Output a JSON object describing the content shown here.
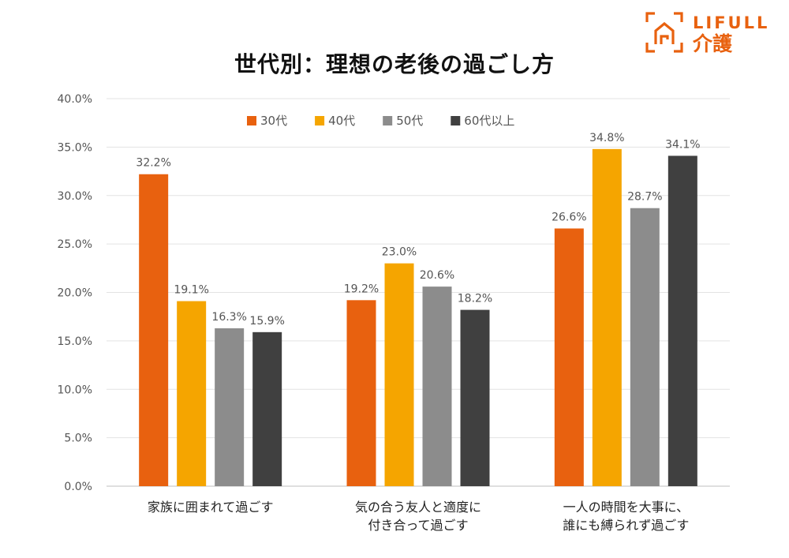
{
  "brand": {
    "name": "LIFULL",
    "sub": "介護",
    "color": "#e8610f"
  },
  "chart_data": {
    "type": "bar",
    "title": "世代別：理想の老後の過ごし方",
    "categories": [
      [
        "家族に囲まれて過ごす"
      ],
      [
        "気の合う友人と適度に",
        "付き合って過ごす"
      ],
      [
        "一人の時間を大事に、",
        "誰にも縛られず過ごす"
      ]
    ],
    "series": [
      {
        "name": "30代",
        "color": "#e8610f",
        "values": [
          32.2,
          19.2,
          26.6
        ]
      },
      {
        "name": "40代",
        "color": "#f5a500",
        "values": [
          19.1,
          23.0,
          34.8
        ]
      },
      {
        "name": "50代",
        "color": "#8c8c8c",
        "values": [
          16.3,
          20.6,
          28.7
        ]
      },
      {
        "name": "60代以上",
        "color": "#404040",
        "values": [
          15.9,
          18.2,
          34.1
        ]
      }
    ],
    "ylim": [
      0,
      40
    ],
    "yticks": [
      0,
      5,
      10,
      15,
      20,
      25,
      30,
      35,
      40
    ],
    "ytick_format": "percent_1dp",
    "grid": true,
    "legend": "top"
  }
}
